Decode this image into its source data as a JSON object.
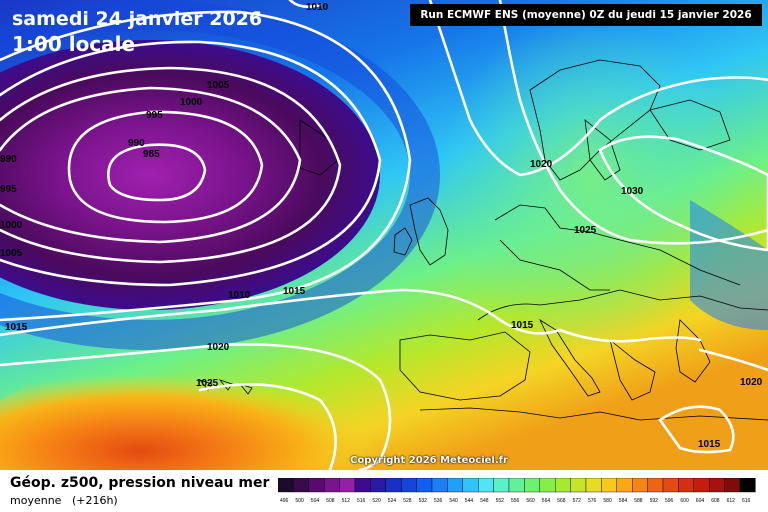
{
  "map": {
    "date_label": "samedi 24 janvier 2026",
    "time_label": "1:00 locale",
    "run_info": "Run ECMWF ENS (moyenne) 0Z du jeudi 15 janvier 2026",
    "copyright": "Copyright 2026 Meteociel.fr",
    "isobar_labels": [
      "1010",
      "1005",
      "1000",
      "995",
      "990",
      "985",
      "990",
      "995",
      "1000",
      "1005",
      "1015",
      "1010",
      "1015",
      "1020",
      "1025",
      "1020",
      "1025",
      "1030",
      "1015",
      "1020",
      "1015"
    ]
  },
  "legend": {
    "title": "Géop. z500, pression niveau mer",
    "subtitle_left": "moyenne",
    "subtitle_right": "(+216h)",
    "ticks": [
      "496",
      "500",
      "504",
      "508",
      "512",
      "516",
      "520",
      "524",
      "528",
      "532",
      "536",
      "540",
      "544",
      "548",
      "552",
      "556",
      "560",
      "564",
      "568",
      "572",
      "576",
      "580",
      "584",
      "588",
      "592",
      "596",
      "600",
      "604",
      "608",
      "612",
      "616"
    ],
    "colors": [
      "#1e0a2a",
      "#3a0a4a",
      "#5a0a6e",
      "#7a148c",
      "#9420a6",
      "#3c0c8c",
      "#2a1aa8",
      "#1830c4",
      "#1446dc",
      "#1060f0",
      "#1a80f6",
      "#22a0f8",
      "#30c4f8",
      "#50e4f4",
      "#5af0c8",
      "#64f098",
      "#6ef070",
      "#86ee46",
      "#a6ea30",
      "#c6e428",
      "#e6dc24",
      "#f8c81c",
      "#f8a818",
      "#f48416",
      "#ee6414",
      "#e44a12",
      "#d43010",
      "#c41c0e",
      "#a8120c",
      "#800c0a",
      "#000000"
    ]
  }
}
